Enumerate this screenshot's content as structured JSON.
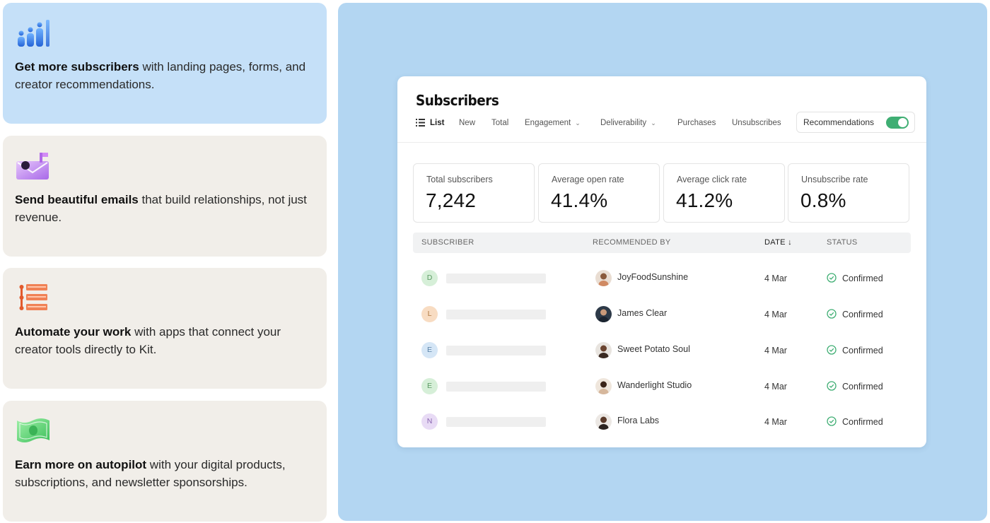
{
  "features": [
    {
      "icon": "people-chart-icon",
      "bold": "Get more subscribers",
      "rest": " with landing pages, forms, and creator recommendations.",
      "active": true
    },
    {
      "icon": "mailbox-icon",
      "bold": "Send beautiful emails",
      "rest": " that build relationships, not just revenue.",
      "active": false
    },
    {
      "icon": "automation-stack-icon",
      "bold": "Automate your work",
      "rest": " with apps that connect your creator tools directly to Kit.",
      "active": false
    },
    {
      "icon": "money-bill-icon",
      "bold": "Earn more on autopilot",
      "rest": " with your digital products, subscriptions, and newsletter sponsorships.",
      "active": false
    }
  ],
  "dashboard": {
    "title": "Subscribers",
    "tabs": [
      {
        "label": "List",
        "active": true,
        "icon": "list-icon"
      },
      {
        "label": "New"
      },
      {
        "label": "Total"
      },
      {
        "label": "Engagement",
        "dropdown": true
      },
      {
        "label": "Deliverability",
        "dropdown": true
      },
      {
        "label": "Purchases"
      },
      {
        "label": "Unsubscribes"
      }
    ],
    "recommendations_toggle": {
      "label": "Recommendations",
      "on": true
    },
    "stats": [
      {
        "label": "Total subscribers",
        "value": "7,242"
      },
      {
        "label": "Average open rate",
        "value": "41.4%"
      },
      {
        "label": "Average click rate",
        "value": "41.2%"
      },
      {
        "label": "Unsubscribe rate",
        "value": "0.8%"
      }
    ],
    "columns": {
      "subscriber": "SUBSCRIBER",
      "recommended_by": "RECOMMENDED BY",
      "date": "DATE",
      "date_sort_icon": "arrow-down-icon",
      "status": "STATUS"
    },
    "rows": [
      {
        "initial": "D",
        "initial_bg": "#d6efd8",
        "initial_fg": "#5a9a62",
        "recommended_by": "JoyFoodSunshine",
        "date": "4 Mar",
        "status": "Confirmed"
      },
      {
        "initial": "L",
        "initial_bg": "#f8dcc2",
        "initial_fg": "#b07a45",
        "recommended_by": "James Clear",
        "date": "4 Mar",
        "status": "Confirmed"
      },
      {
        "initial": "E",
        "initial_bg": "#d5e6f6",
        "initial_fg": "#5a83a8",
        "recommended_by": "Sweet Potato Soul",
        "date": "4 Mar",
        "status": "Confirmed"
      },
      {
        "initial": "E",
        "initial_bg": "#d6efd8",
        "initial_fg": "#5a9a62",
        "recommended_by": "Wanderlight Studio",
        "date": "4 Mar",
        "status": "Confirmed"
      },
      {
        "initial": "N",
        "initial_bg": "#e8dbf5",
        "initial_fg": "#8a66b0",
        "recommended_by": "Flora Labs",
        "date": "4 Mar",
        "status": "Confirmed"
      }
    ],
    "colors": {
      "toggle_on": "#3fae73",
      "check": "#3fae73",
      "panel_bg": "#b3d6f2",
      "active_card": "#c5e0f8"
    }
  }
}
